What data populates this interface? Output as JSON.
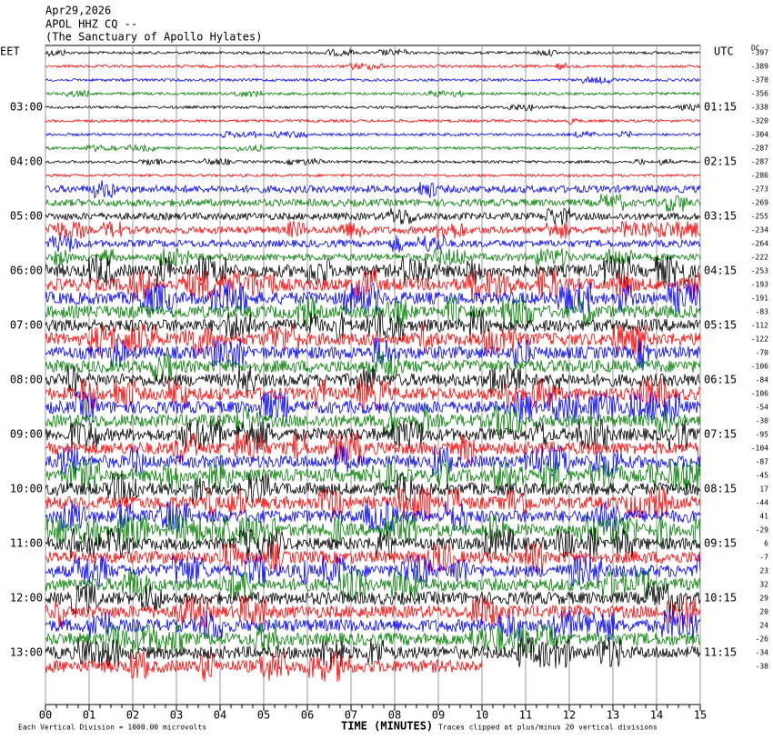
{
  "chart_data": {
    "type": "seismogram",
    "title_lines": [
      "Apr29,2026",
      "APOL HHZ CQ --",
      "(The Sanctuary of Apollo Hylates)"
    ],
    "left_axis_title": "EET",
    "right_axis_title": "UTC",
    "offset_title": "DC",
    "eet_labels": [
      "03:00",
      "04:00",
      "05:00",
      "06:00",
      "07:00",
      "08:00",
      "09:00",
      "10:00",
      "11:00",
      "12:00",
      "13:00"
    ],
    "utc_labels": [
      "01:15",
      "02:15",
      "03:15",
      "04:15",
      "05:15",
      "06:15",
      "07:15",
      "08:15",
      "09:15",
      "10:15",
      "11:15"
    ],
    "dc_offsets": [
      -397,
      -389,
      -370,
      -356,
      -338,
      -320,
      -304,
      -287,
      -287,
      -286,
      -273,
      -269,
      -255,
      -234,
      -264,
      -222,
      -253,
      -193,
      -191,
      -83,
      -112,
      -122,
      -70,
      -106,
      -84,
      -106,
      -54,
      -30,
      -95,
      -104,
      -87,
      -45,
      17,
      -44,
      41,
      -29,
      6,
      -7,
      23,
      32,
      29,
      20,
      24,
      -26,
      -34,
      -38
    ],
    "trace_colors": [
      "#000000",
      "#ff0000",
      "#0000ff",
      "#008000"
    ],
    "x_label": "TIME (MINUTES)",
    "xlim": [
      0,
      15
    ],
    "xticks": [
      {
        "value": 0,
        "label": "00"
      },
      {
        "value": 1,
        "label": "01"
      },
      {
        "value": 2,
        "label": "02"
      },
      {
        "value": 3,
        "label": "03"
      },
      {
        "value": 4,
        "label": "04"
      },
      {
        "value": 5,
        "label": "05"
      },
      {
        "value": 6,
        "label": "06"
      },
      {
        "value": 7,
        "label": "07"
      },
      {
        "value": 8,
        "label": "08"
      },
      {
        "value": 9,
        "label": "09"
      },
      10,
      11,
      12,
      13,
      14,
      15
    ],
    "scale_note": "Each Vertical Division = 1000.00 microvolts",
    "clip_note": "Traces clipped at plus/minus 20 vertical divisions"
  }
}
